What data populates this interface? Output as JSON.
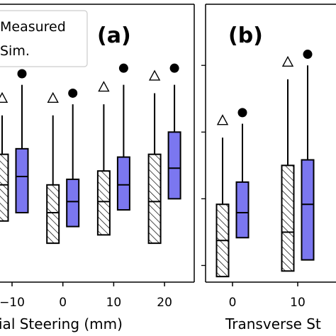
{
  "chart_data": [
    {
      "type": "box",
      "panel_label": "(a)",
      "xlabel": "ial Steering (mm)",
      "categories": [
        "−10",
        "0",
        "10",
        "20"
      ],
      "category_values": [
        -10,
        0,
        10,
        20
      ],
      "partial_left_category": {
        "x": -20
      },
      "ylim": [
        0,
        1
      ],
      "grid": false,
      "legend": {
        "placement": "top-left",
        "entries": [
          {
            "label": "Measured",
            "style": "hatched-white"
          },
          {
            "label": "Sim.",
            "style": "fill",
            "color": "#7b77f0"
          }
        ]
      },
      "series": [
        {
          "name": "Measured",
          "style": "hatched-white",
          "marker": "open-triangle",
          "boxes": [
            {
              "x": -20,
              "q1": 0.22,
              "median": 0.35,
              "q3": 0.46,
              "whisker_low": 0.22,
              "whisker_high": 0.6,
              "outlier": 0.66
            },
            {
              "x": -10,
              "q1": 0.22,
              "median": 0.35,
              "q3": 0.46,
              "whisker_low": 0.22,
              "whisker_high": 0.6,
              "outlier": 0.66
            },
            {
              "x": 0,
              "q1": 0.14,
              "median": 0.25,
              "q3": 0.35,
              "whisker_low": 0.14,
              "whisker_high": 0.6,
              "outlier": 0.66
            },
            {
              "x": 10,
              "q1": 0.17,
              "median": 0.29,
              "q3": 0.4,
              "whisker_low": 0.17,
              "whisker_high": 0.64,
              "outlier": 0.7
            },
            {
              "x": 20,
              "q1": 0.14,
              "median": 0.29,
              "q3": 0.46,
              "whisker_low": 0.14,
              "whisker_high": 0.68,
              "outlier": 0.74
            }
          ]
        },
        {
          "name": "Sim.",
          "style": "fill",
          "color": "#7b77f0",
          "marker": "filled-circle",
          "boxes": [
            {
              "x": -20,
              "q1": 0.25,
              "median": 0.38,
              "q3": 0.48,
              "whisker_low": 0.25,
              "whisker_high": 0.71,
              "outlier": 0.75
            },
            {
              "x": -10,
              "q1": 0.25,
              "median": 0.38,
              "q3": 0.48,
              "whisker_low": 0.25,
              "whisker_high": 0.71,
              "outlier": 0.75
            },
            {
              "x": 0,
              "q1": 0.2,
              "median": 0.29,
              "q3": 0.37,
              "whisker_low": 0.2,
              "whisker_high": 0.64,
              "outlier": 0.68
            },
            {
              "x": 10,
              "q1": 0.26,
              "median": 0.35,
              "q3": 0.45,
              "whisker_low": 0.26,
              "whisker_high": 0.71,
              "outlier": 0.77
            },
            {
              "x": 20,
              "q1": 0.3,
              "median": 0.41,
              "q3": 0.54,
              "whisker_low": 0.3,
              "whisker_high": 0.71,
              "outlier": 0.77
            }
          ]
        }
      ]
    },
    {
      "type": "box",
      "panel_label": "(b)",
      "xlabel": "Transverse St",
      "categories": [
        "0",
        "10"
      ],
      "category_values": [
        0,
        10
      ],
      "ylim": [
        0,
        1
      ],
      "grid": false,
      "series": [
        {
          "name": "Measured",
          "style": "hatched-white",
          "marker": "open-triangle",
          "boxes": [
            {
              "x": 0,
              "q1": 0.02,
              "median": 0.15,
              "q3": 0.28,
              "whisker_low": 0.02,
              "whisker_high": 0.52,
              "outlier": 0.58
            },
            {
              "x": 10,
              "q1": 0.04,
              "median": 0.18,
              "q3": 0.42,
              "whisker_low": 0.04,
              "whisker_high": 0.73,
              "outlier": 0.79
            }
          ]
        },
        {
          "name": "Sim.",
          "style": "fill",
          "color": "#7b77f0",
          "marker": "filled-circle",
          "boxes": [
            {
              "x": 0,
              "q1": 0.16,
              "median": 0.25,
              "q3": 0.36,
              "whisker_low": 0.16,
              "whisker_high": 0.57,
              "outlier": 0.61
            },
            {
              "x": 10,
              "q1": 0.08,
              "median": 0.28,
              "q3": 0.44,
              "whisker_low": 0.08,
              "whisker_high": 0.78,
              "outlier": 0.82
            }
          ]
        }
      ]
    }
  ]
}
